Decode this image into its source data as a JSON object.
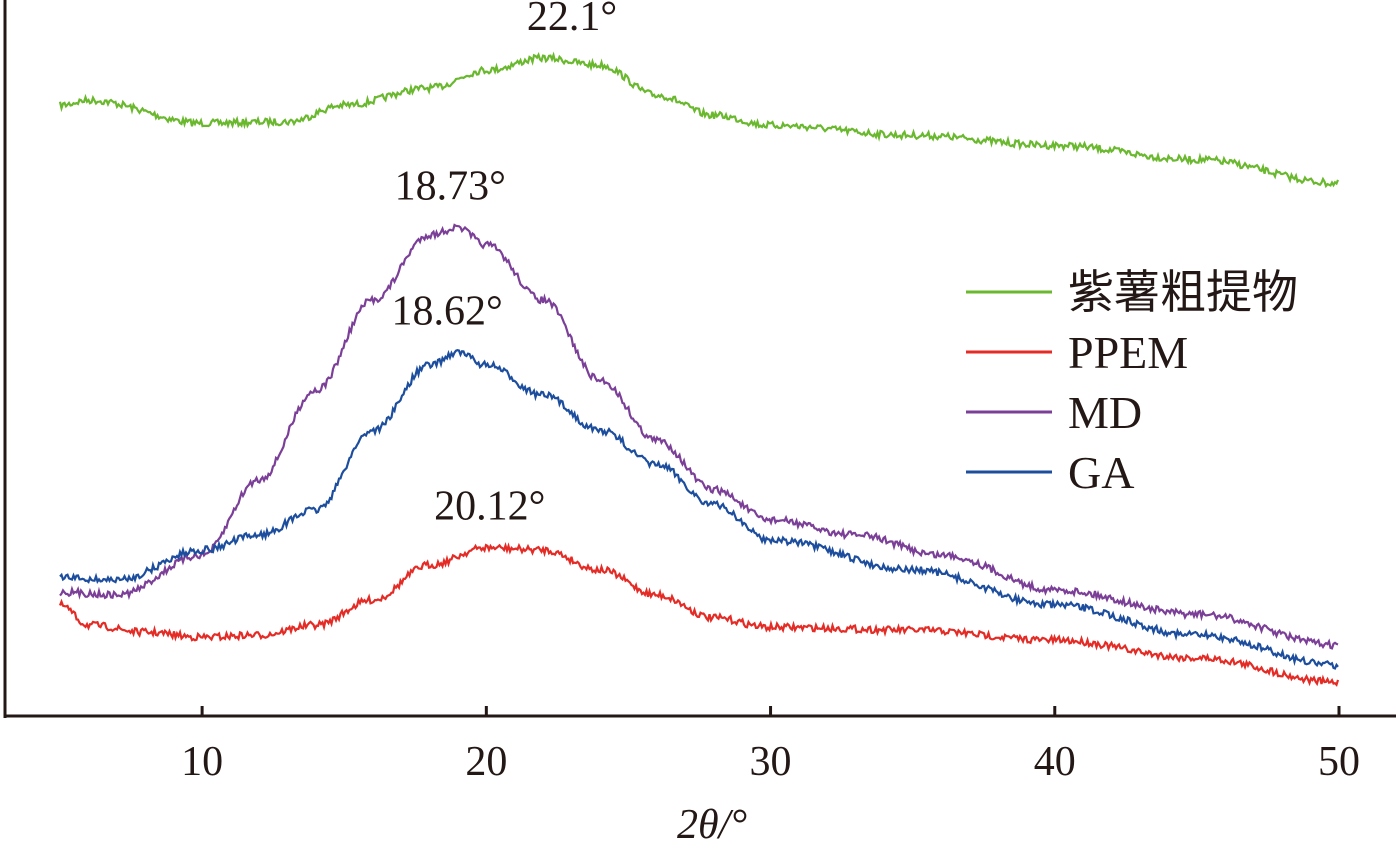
{
  "chart_data": {
    "type": "line",
    "title": "",
    "xlabel": "2θ/°",
    "ylabel": "",
    "xlim": [
      5,
      50
    ],
    "ylim": [
      0,
      100
    ],
    "x_ticks": [
      10,
      20,
      30,
      40,
      50
    ],
    "y_ticks_shown": false,
    "grid": false,
    "legend_position": "right",
    "series": [
      {
        "name": "紫薯粗提物",
        "color": "#6ab82e",
        "x": [
          5,
          6,
          10,
          13,
          15,
          18,
          20,
          22,
          24,
          26,
          28,
          30,
          35,
          40,
          45,
          50
        ],
        "y": [
          85.3,
          86.0,
          82.8,
          83.0,
          85.3,
          87.7,
          90.2,
          91.9,
          90.9,
          86.7,
          83.9,
          82.5,
          81.1,
          79.7,
          77.7,
          74.4
        ]
      },
      {
        "name": "PPEM",
        "color": "#e42b25",
        "x": [
          5,
          6,
          8,
          10,
          12,
          14,
          16,
          18,
          20,
          22,
          24,
          26,
          28,
          30,
          35,
          40,
          45,
          50
        ],
        "y": [
          15.5,
          12.7,
          11.7,
          11.0,
          11.3,
          12.7,
          16.2,
          21.1,
          23.5,
          23.2,
          20.4,
          16.9,
          13.7,
          12.4,
          12.0,
          10.6,
          8.1,
          4.7
        ]
      },
      {
        "name": "MD",
        "color": "#7b3f98",
        "x": [
          5,
          7,
          10,
          12,
          14,
          16,
          18,
          19,
          20,
          22,
          24,
          26,
          28,
          30,
          33,
          36,
          40,
          45,
          50
        ],
        "y": [
          17.3,
          16.9,
          22.5,
          33.0,
          45.5,
          58.1,
          67.2,
          68.2,
          65.8,
          58.1,
          46.9,
          38.5,
          31.6,
          27.4,
          25.3,
          22.5,
          17.6,
          14.2,
          9.9
        ]
      },
      {
        "name": "GA",
        "color": "#1d4e9e",
        "x": [
          5,
          7,
          10,
          12,
          14,
          16,
          18,
          19,
          20,
          22,
          24,
          26,
          28,
          30,
          35,
          40,
          45,
          50
        ],
        "y": [
          19.3,
          19.0,
          23.2,
          25.3,
          28.8,
          39.9,
          49.0,
          50.8,
          49.0,
          44.8,
          39.9,
          35.1,
          29.5,
          24.6,
          20.4,
          15.5,
          11.3,
          7.1
        ]
      }
    ],
    "annotations": [
      {
        "text": "22.1°",
        "series": "紫薯粗提物",
        "x": 22.1
      },
      {
        "text": "18.73°",
        "series": "MD",
        "x": 18.73
      },
      {
        "text": "18.62°",
        "series": "GA",
        "x": 18.62
      },
      {
        "text": "20.12°",
        "series": "PPEM",
        "x": 20.12
      }
    ]
  }
}
